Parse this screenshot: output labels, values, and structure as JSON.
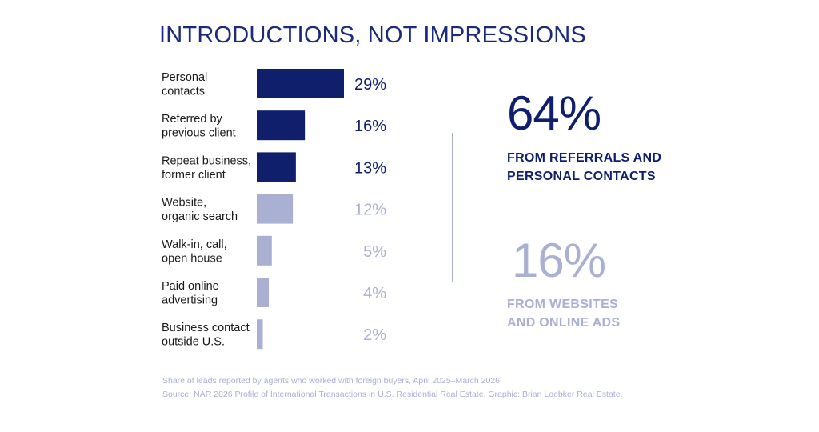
{
  "title": "INTRODUCTIONS, NOT IMPRESSIONS",
  "colors": {
    "primary": "#0f1f6b",
    "secondary": "#a9b0d2",
    "text": "#1a1a1a"
  },
  "chart_data": {
    "type": "bar",
    "orientation": "horizontal",
    "title": "INTRODUCTIONS, NOT IMPRESSIONS",
    "categories": [
      [
        "Personal",
        "contacts"
      ],
      [
        "Referred by",
        "previous client"
      ],
      [
        "Repeat business,",
        "former client"
      ],
      [
        "Website,",
        "organic search"
      ],
      [
        "Walk-in, call,",
        "open house"
      ],
      [
        "Paid online",
        "advertising"
      ],
      [
        "Business contact",
        "outside U.S."
      ]
    ],
    "values": [
      29,
      16,
      13,
      12,
      5,
      4,
      2
    ],
    "value_labels": [
      "29%",
      "16%",
      "13%",
      "12%",
      "5%",
      "4%",
      "2%"
    ],
    "groups": [
      "referral",
      "referral",
      "referral",
      "other",
      "other",
      "other",
      "other"
    ],
    "xlabel": "",
    "ylabel": "",
    "grid": false,
    "legend": "none"
  },
  "callouts": {
    "referral": {
      "value": "64%",
      "line1": "FROM REFERRALS AND",
      "line2": "PERSONAL CONTACTS"
    },
    "online": {
      "value": "16%",
      "line1": "FROM WEBSITES",
      "line2": "AND ONLINE ADS"
    }
  },
  "footnote": {
    "line1": "Share of leads reported by agents who worked with foreign buyers, April 2025–March 2026.",
    "line2": "Source: NAR 2026 Profile of International Transactions in U.S. Residential Real Estate. Graphic: Brian Loebker Real Estate."
  }
}
